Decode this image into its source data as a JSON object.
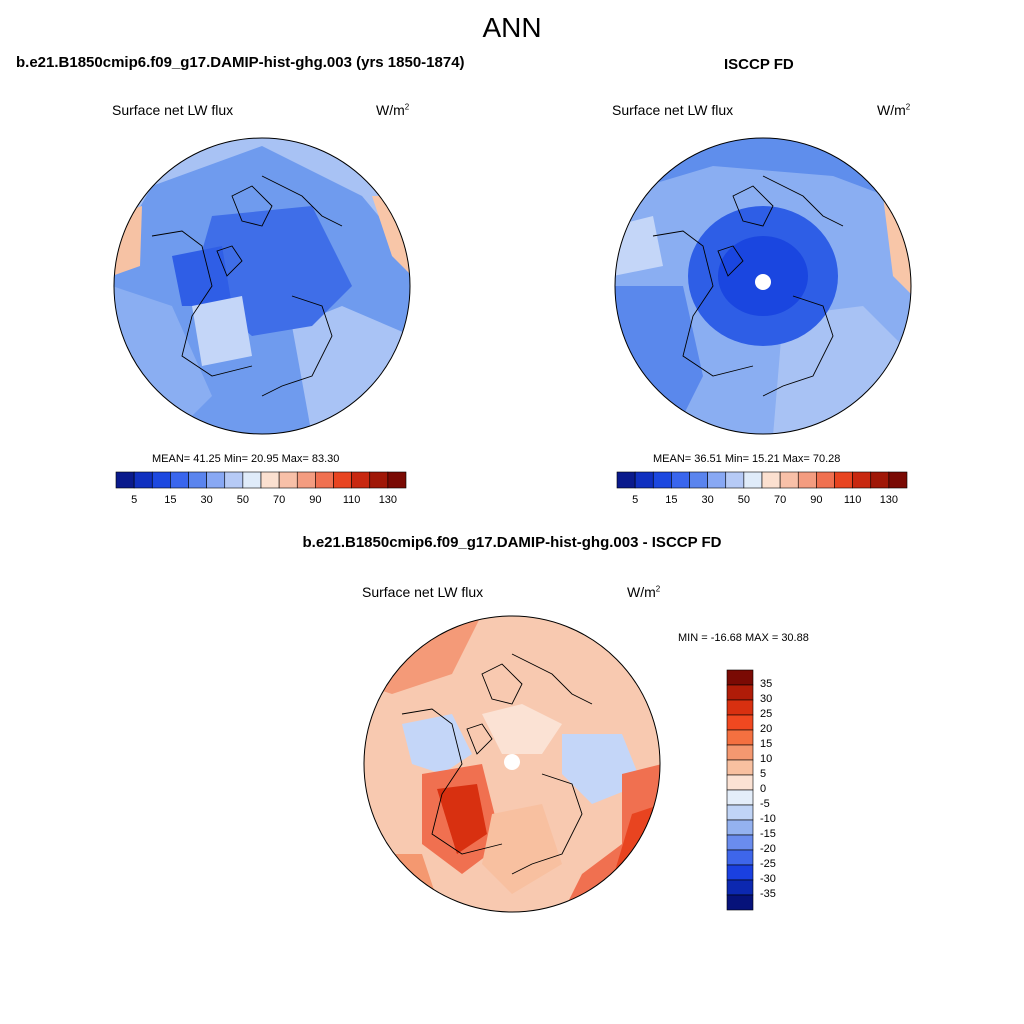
{
  "title": "ANN",
  "panels": [
    {
      "header": "b.e21.B1850cmip6.f09_g17.DAMIP-hist-ghg.003 (yrs 1850-1874)",
      "variable": "Surface net LW flux",
      "units_base": "W/m",
      "units_exp": "2",
      "stats": "MEAN=  41.25   Min=  20.95   Max=  83.30"
    },
    {
      "header": "ISCCP FD",
      "variable": "Surface net LW flux",
      "units_base": "W/m",
      "units_exp": "2",
      "stats": "MEAN=  36.51   Min=  15.21   Max=  70.28"
    }
  ],
  "colorbar_top": {
    "ticks": [
      "5",
      "15",
      "30",
      "50",
      "70",
      "90",
      "110",
      "130"
    ],
    "colors": [
      "#0a1a8c",
      "#1030c0",
      "#1c48e0",
      "#3a66ee",
      "#5a84ee",
      "#88a8f4",
      "#b6caf6",
      "#e0ecfa",
      "#fbe0d0",
      "#f8c0a8",
      "#f49c80",
      "#f07050",
      "#e84420",
      "#c82810",
      "#a01808",
      "#7a0a04"
    ]
  },
  "diff_panel": {
    "header": "b.e21.B1850cmip6.f09_g17.DAMIP-hist-ghg.003 - ISCCP FD",
    "variable": "Surface net LW flux",
    "units_base": "W/m",
    "units_exp": "2",
    "stats": "MIN = -16.68 MAX =  30.88"
  },
  "colorbar_diff": {
    "labels": [
      "35",
      "30",
      "25",
      "20",
      "15",
      "10",
      "5",
      "0",
      "-5",
      "-10",
      "-15",
      "-20",
      "-25",
      "-30",
      "-35"
    ],
    "colors": [
      "#7a0a04",
      "#b01c08",
      "#d83010",
      "#f04820",
      "#f47040",
      "#f49870",
      "#f8c0a0",
      "#fbe2d4",
      "#e4eefa",
      "#c0d4f6",
      "#94b2f0",
      "#6a8cee",
      "#3e66ea",
      "#1a40e0",
      "#0c28b0",
      "#06127a"
    ]
  },
  "map_palette": {
    "ocean_top": "#5f8eec",
    "ocean_diff": "#f8c9b0",
    "coastline": "#000000"
  }
}
